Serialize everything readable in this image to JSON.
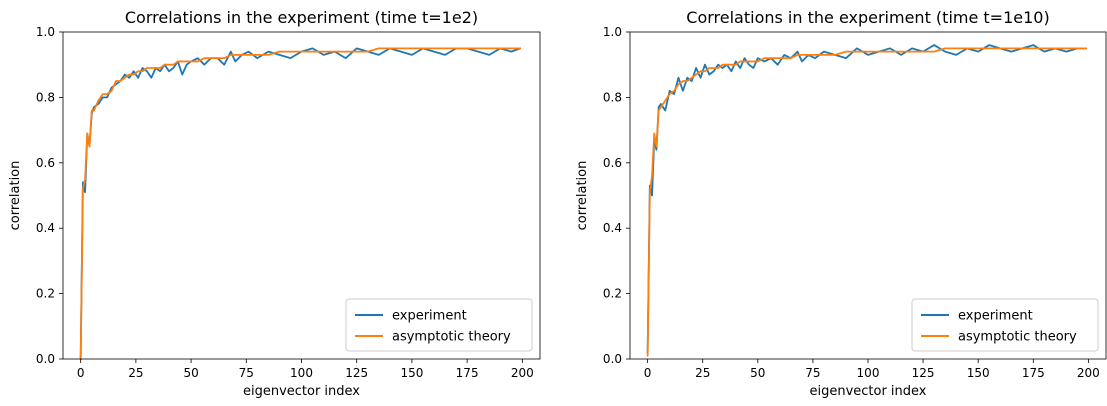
{
  "chart_data": [
    {
      "type": "line",
      "title": "Correlations in the experiment (time t=1e2)",
      "xlabel": "eigenvector index",
      "ylabel": "correlation",
      "xlim": [
        -8,
        208
      ],
      "ylim": [
        0.0,
        1.0
      ],
      "xticks": [
        0,
        25,
        50,
        75,
        100,
        125,
        150,
        175,
        200
      ],
      "yticks": [
        0.0,
        0.2,
        0.4,
        0.6,
        0.8,
        1.0
      ],
      "grid": false,
      "legend": "bottom-right",
      "series": [
        {
          "name": "experiment",
          "color": "#1f77b4",
          "x": [
            0,
            1,
            2,
            3,
            4,
            5,
            6,
            8,
            10,
            12,
            14,
            16,
            18,
            20,
            22,
            24,
            26,
            28,
            30,
            32,
            34,
            36,
            38,
            40,
            42,
            44,
            46,
            48,
            50,
            53,
            56,
            59,
            62,
            65,
            68,
            70,
            73,
            76,
            80,
            85,
            90,
            95,
            100,
            105,
            110,
            115,
            120,
            125,
            130,
            135,
            140,
            145,
            150,
            155,
            160,
            165,
            170,
            175,
            180,
            185,
            190,
            195,
            199
          ],
          "y": [
            0.0,
            0.54,
            0.51,
            0.69,
            0.65,
            0.75,
            0.77,
            0.78,
            0.8,
            0.8,
            0.83,
            0.84,
            0.85,
            0.87,
            0.86,
            0.88,
            0.86,
            0.89,
            0.88,
            0.86,
            0.89,
            0.88,
            0.9,
            0.88,
            0.89,
            0.91,
            0.87,
            0.9,
            0.91,
            0.92,
            0.9,
            0.92,
            0.92,
            0.9,
            0.94,
            0.91,
            0.93,
            0.94,
            0.92,
            0.94,
            0.93,
            0.92,
            0.94,
            0.95,
            0.93,
            0.94,
            0.92,
            0.95,
            0.94,
            0.93,
            0.95,
            0.94,
            0.93,
            0.95,
            0.94,
            0.93,
            0.95,
            0.95,
            0.94,
            0.93,
            0.95,
            0.94,
            0.95
          ]
        },
        {
          "name": "asymptotic theory",
          "color": "#ff7f0e",
          "x": [
            0,
            1,
            2,
            3,
            4,
            5,
            6,
            8,
            10,
            12,
            14,
            16,
            18,
            20,
            22,
            24,
            26,
            28,
            30,
            32,
            34,
            36,
            38,
            40,
            42,
            44,
            46,
            48,
            50,
            53,
            56,
            59,
            62,
            65,
            68,
            70,
            73,
            76,
            80,
            85,
            90,
            95,
            100,
            105,
            110,
            115,
            120,
            125,
            130,
            135,
            140,
            145,
            150,
            155,
            160,
            165,
            170,
            175,
            180,
            185,
            190,
            195,
            199
          ],
          "y": [
            0.0,
            0.52,
            0.55,
            0.69,
            0.65,
            0.76,
            0.76,
            0.79,
            0.81,
            0.81,
            0.82,
            0.85,
            0.85,
            0.86,
            0.87,
            0.87,
            0.88,
            0.88,
            0.89,
            0.89,
            0.89,
            0.89,
            0.9,
            0.9,
            0.9,
            0.91,
            0.91,
            0.91,
            0.91,
            0.91,
            0.92,
            0.92,
            0.92,
            0.92,
            0.93,
            0.93,
            0.93,
            0.93,
            0.93,
            0.93,
            0.94,
            0.94,
            0.94,
            0.94,
            0.94,
            0.94,
            0.94,
            0.94,
            0.94,
            0.95,
            0.95,
            0.95,
            0.95,
            0.95,
            0.95,
            0.95,
            0.95,
            0.95,
            0.95,
            0.95,
            0.95,
            0.95,
            0.95
          ]
        }
      ]
    },
    {
      "type": "line",
      "title": "Correlations in the experiment (time t=1e10)",
      "xlabel": "eigenvector index",
      "ylabel": "correlation",
      "xlim": [
        -8,
        208
      ],
      "ylim": [
        0.0,
        1.0
      ],
      "xticks": [
        0,
        25,
        50,
        75,
        100,
        125,
        150,
        175,
        200
      ],
      "yticks": [
        0.0,
        0.2,
        0.4,
        0.6,
        0.8,
        1.0
      ],
      "grid": false,
      "legend": "bottom-right",
      "series": [
        {
          "name": "experiment",
          "color": "#1f77b4",
          "x": [
            0,
            1,
            2,
            3,
            4,
            5,
            6,
            8,
            10,
            12,
            14,
            16,
            18,
            20,
            22,
            24,
            26,
            28,
            30,
            32,
            34,
            36,
            38,
            40,
            42,
            44,
            46,
            48,
            50,
            53,
            56,
            59,
            62,
            65,
            68,
            70,
            73,
            76,
            80,
            85,
            90,
            95,
            100,
            105,
            110,
            115,
            120,
            125,
            130,
            135,
            140,
            145,
            150,
            155,
            160,
            165,
            170,
            175,
            180,
            185,
            190,
            195,
            199
          ],
          "y": [
            0.02,
            0.53,
            0.5,
            0.67,
            0.64,
            0.77,
            0.78,
            0.76,
            0.82,
            0.81,
            0.86,
            0.82,
            0.86,
            0.85,
            0.89,
            0.86,
            0.9,
            0.87,
            0.88,
            0.9,
            0.89,
            0.9,
            0.88,
            0.91,
            0.89,
            0.92,
            0.9,
            0.89,
            0.92,
            0.91,
            0.92,
            0.9,
            0.93,
            0.92,
            0.94,
            0.91,
            0.93,
            0.92,
            0.94,
            0.93,
            0.92,
            0.95,
            0.93,
            0.94,
            0.95,
            0.93,
            0.95,
            0.94,
            0.96,
            0.94,
            0.93,
            0.95,
            0.94,
            0.96,
            0.95,
            0.94,
            0.95,
            0.96,
            0.94,
            0.95,
            0.94,
            0.95,
            0.95
          ]
        },
        {
          "name": "asymptotic theory",
          "color": "#ff7f0e",
          "x": [
            0,
            1,
            2,
            3,
            4,
            5,
            6,
            8,
            10,
            12,
            14,
            16,
            18,
            20,
            22,
            24,
            26,
            28,
            30,
            32,
            34,
            36,
            38,
            40,
            42,
            44,
            46,
            48,
            50,
            53,
            56,
            59,
            62,
            65,
            68,
            70,
            73,
            76,
            80,
            85,
            90,
            95,
            100,
            105,
            110,
            115,
            120,
            125,
            130,
            135,
            140,
            145,
            150,
            155,
            160,
            165,
            170,
            175,
            180,
            185,
            190,
            195,
            199
          ],
          "y": [
            0.01,
            0.51,
            0.56,
            0.69,
            0.65,
            0.76,
            0.77,
            0.79,
            0.81,
            0.82,
            0.84,
            0.85,
            0.85,
            0.86,
            0.87,
            0.88,
            0.88,
            0.89,
            0.89,
            0.89,
            0.9,
            0.9,
            0.9,
            0.9,
            0.91,
            0.91,
            0.91,
            0.91,
            0.91,
            0.92,
            0.92,
            0.92,
            0.92,
            0.92,
            0.93,
            0.93,
            0.93,
            0.93,
            0.93,
            0.93,
            0.94,
            0.94,
            0.94,
            0.94,
            0.94,
            0.94,
            0.94,
            0.94,
            0.94,
            0.95,
            0.95,
            0.95,
            0.95,
            0.95,
            0.95,
            0.95,
            0.95,
            0.95,
            0.95,
            0.95,
            0.95,
            0.95,
            0.95
          ]
        }
      ]
    }
  ]
}
